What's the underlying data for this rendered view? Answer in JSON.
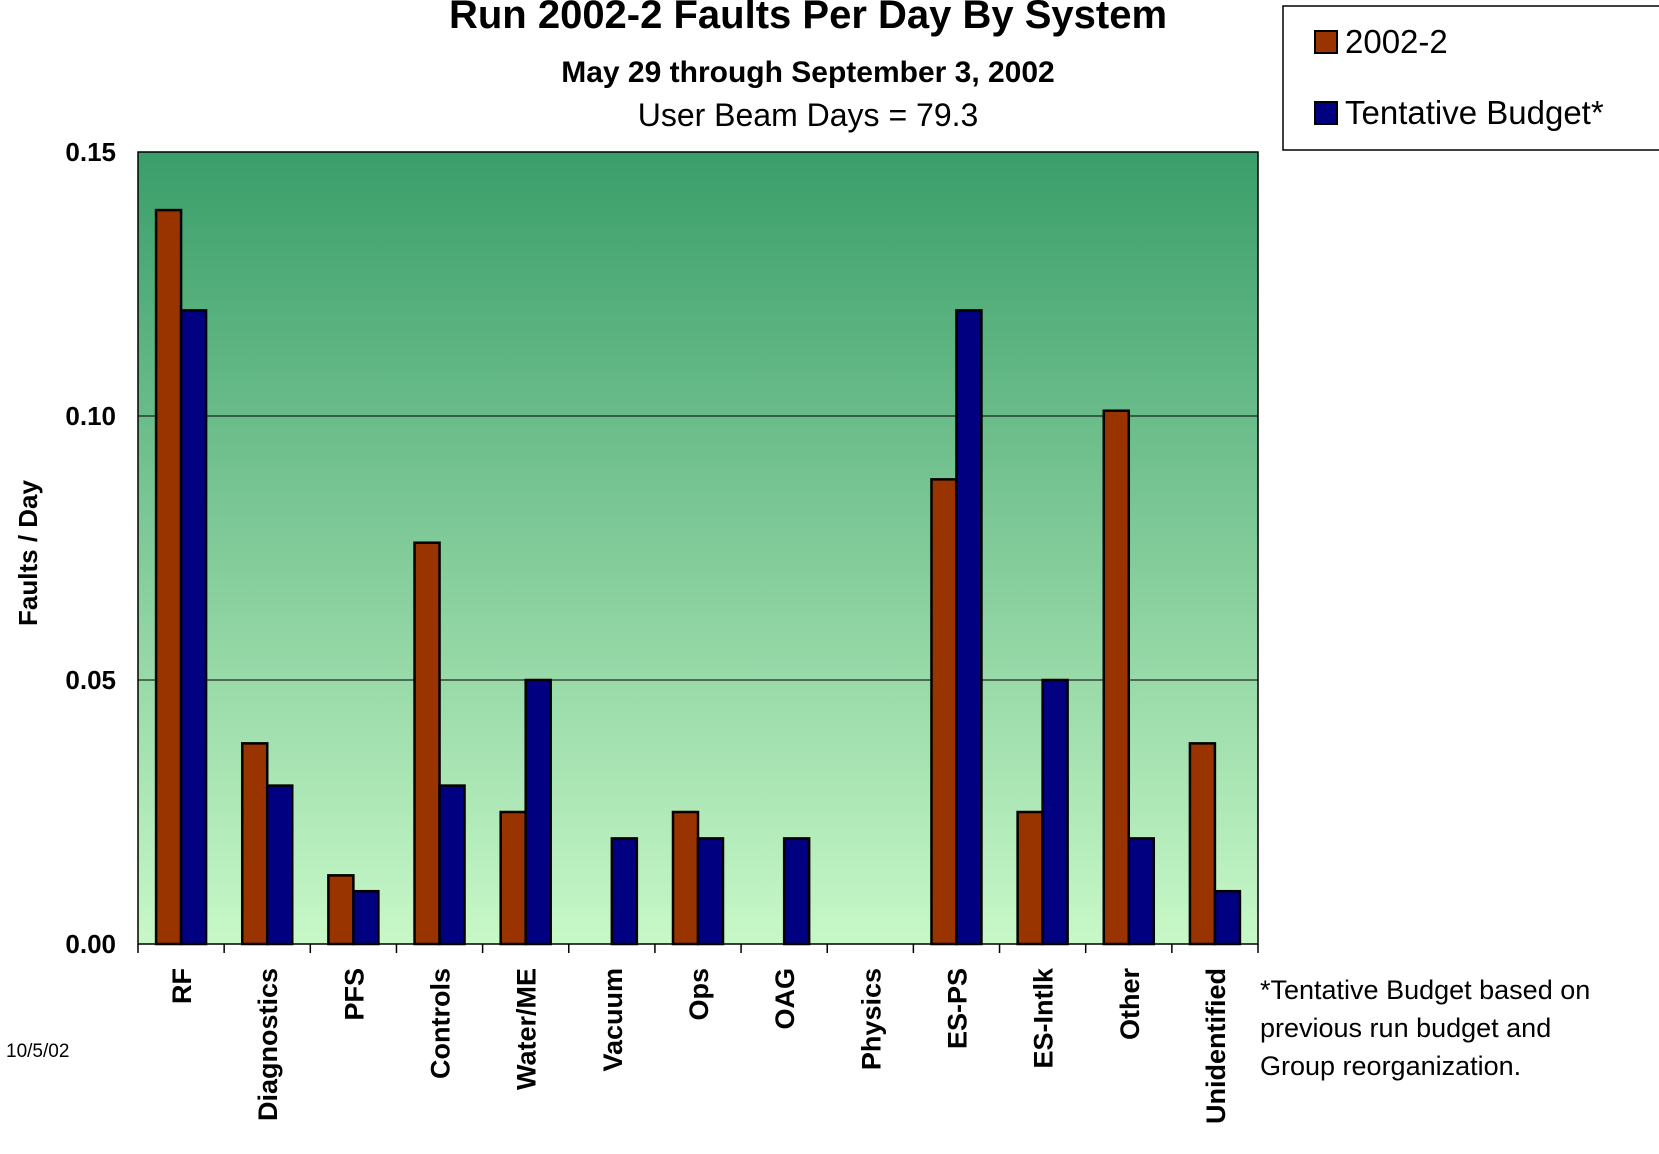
{
  "chart_data": {
    "type": "bar",
    "title": "Run 2002-2 Faults Per Day By System",
    "subtitle": "May 29 through September 3, 2002",
    "subtitle2": "User Beam Days = 79.3",
    "ylabel": "Faults / Day",
    "xlabel": "",
    "ylim": [
      0,
      0.15
    ],
    "yticks": [
      "0.00",
      "0.05",
      "0.10",
      "0.15"
    ],
    "grid": true,
    "legend_position": "top-right",
    "categories": [
      "RF",
      "Diagnostics",
      "PFS",
      "Controls",
      "Water/ME",
      "Vacuum",
      "Ops",
      "OAG",
      "Physics",
      "ES-PS",
      "ES-Intlk",
      "Other",
      "Unidentified"
    ],
    "series": [
      {
        "name": "2002-2",
        "color": "#993300",
        "values": [
          0.139,
          0.038,
          0.013,
          0.076,
          0.025,
          0.0,
          0.025,
          0.0,
          0.0,
          0.088,
          0.025,
          0.101,
          0.038
        ]
      },
      {
        "name": "Tentative Budget*",
        "color": "#000080",
        "values": [
          0.12,
          0.03,
          0.01,
          0.03,
          0.05,
          0.02,
          0.02,
          0.02,
          0.0,
          0.12,
          0.05,
          0.02,
          0.01
        ]
      }
    ],
    "plot_background": [
      "#3a9e6a",
      "#c8f8c8"
    ],
    "footnote": [
      "*Tentative Budget based on",
      "previous run budget and",
      "Group reorganization."
    ],
    "date": "10/5/02"
  }
}
